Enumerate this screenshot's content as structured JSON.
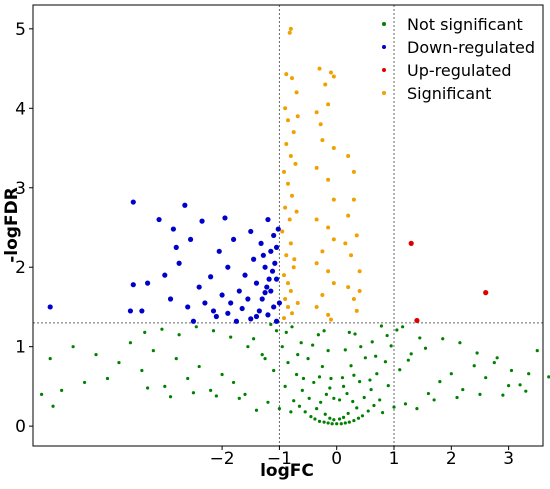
{
  "chart_data": {
    "type": "scatter",
    "title": "",
    "xlabel": "logFC",
    "ylabel": "-logFDR",
    "xlim": [
      -5.3,
      3.6
    ],
    "ylim": [
      -0.25,
      5.3
    ],
    "x_ticks": [
      -2,
      -1,
      0,
      1,
      2,
      3
    ],
    "x_tick_labels": [
      "−2",
      "−1",
      "0",
      "1",
      "2",
      "3"
    ],
    "y_ticks": [
      0,
      1,
      2,
      3,
      4,
      5
    ],
    "y_tick_labels": [
      "0",
      "1",
      "2",
      "3",
      "4",
      "5"
    ],
    "reference_lines": {
      "vertical": [
        -1,
        1
      ],
      "horizontal": [
        1.3
      ]
    },
    "grid": false,
    "legend_position": "top-right",
    "series": [
      {
        "name": "Not significant",
        "color": "#008000",
        "marker_size": 1.6,
        "points": [
          [
            -0.45,
            0.12
          ],
          [
            -0.38,
            0.09
          ],
          [
            -0.3,
            0.06
          ],
          [
            -0.22,
            0.05
          ],
          [
            -0.15,
            0.04
          ],
          [
            -0.08,
            0.03
          ],
          [
            0.0,
            0.03
          ],
          [
            0.08,
            0.03
          ],
          [
            0.15,
            0.04
          ],
          [
            0.22,
            0.05
          ],
          [
            0.3,
            0.07
          ],
          [
            0.38,
            0.1
          ],
          [
            0.45,
            0.13
          ],
          [
            -0.55,
            0.18
          ],
          [
            0.55,
            0.19
          ],
          [
            -0.65,
            0.25
          ],
          [
            0.65,
            0.26
          ],
          [
            -0.75,
            0.32
          ],
          [
            0.75,
            0.33
          ],
          [
            -0.12,
            0.1
          ],
          [
            0.12,
            0.11
          ],
          [
            -0.2,
            0.15
          ],
          [
            0.2,
            0.16
          ],
          [
            -0.05,
            0.08
          ],
          [
            0.05,
            0.09
          ],
          [
            -0.35,
            0.22
          ],
          [
            0.35,
            0.23
          ],
          [
            -0.28,
            0.3
          ],
          [
            0.28,
            0.31
          ],
          [
            -0.48,
            0.35
          ],
          [
            0.48,
            0.36
          ],
          [
            -0.18,
            0.4
          ],
          [
            0.18,
            0.41
          ],
          [
            -0.6,
            0.45
          ],
          [
            0.6,
            0.46
          ],
          [
            -0.9,
            0.5
          ],
          [
            0.9,
            0.51
          ],
          [
            -0.4,
            0.55
          ],
          [
            0.4,
            0.56
          ],
          [
            -0.1,
            0.6
          ],
          [
            0.1,
            0.61
          ],
          [
            -0.7,
            0.65
          ],
          [
            0.7,
            0.66
          ],
          [
            -1.1,
            0.7
          ],
          [
            1.1,
            0.71
          ],
          [
            -0.25,
            0.75
          ],
          [
            0.25,
            0.76
          ],
          [
            -0.85,
            0.8
          ],
          [
            0.85,
            0.81
          ],
          [
            -0.5,
            0.85
          ],
          [
            0.5,
            0.86
          ],
          [
            -1.3,
            0.9
          ],
          [
            1.3,
            0.91
          ],
          [
            -0.15,
            0.95
          ],
          [
            0.15,
            0.96
          ],
          [
            -0.95,
            1.0
          ],
          [
            0.95,
            1.01
          ],
          [
            -0.62,
            1.05
          ],
          [
            0.62,
            1.06
          ],
          [
            -1.45,
            1.1
          ],
          [
            1.45,
            1.11
          ],
          [
            -0.32,
            1.15
          ],
          [
            0.32,
            1.16
          ],
          [
            -1.05,
            1.2
          ],
          [
            1.05,
            1.21
          ],
          [
            -0.78,
            1.25
          ],
          [
            0.78,
            1.26
          ],
          [
            -1.6,
            0.4
          ],
          [
            1.6,
            0.41
          ],
          [
            -1.8,
            0.55
          ],
          [
            1.8,
            0.56
          ],
          [
            -2.0,
            0.65
          ],
          [
            2.0,
            0.66
          ],
          [
            -2.2,
            0.45
          ],
          [
            2.2,
            0.46
          ],
          [
            -2.4,
            0.75
          ],
          [
            2.4,
            0.76
          ],
          [
            -2.6,
            0.6
          ],
          [
            2.6,
            0.61
          ],
          [
            -2.8,
            0.85
          ],
          [
            2.8,
            0.86
          ],
          [
            -3.0,
            0.5
          ],
          [
            3.0,
            0.51
          ],
          [
            -3.2,
            0.95
          ],
          [
            3.2,
            0.52
          ],
          [
            -3.4,
            0.7
          ],
          [
            -3.6,
            1.05
          ],
          [
            -3.8,
            0.8
          ],
          [
            -4.0,
            0.6
          ],
          [
            -4.2,
            0.9
          ],
          [
            -4.4,
            0.55
          ],
          [
            -4.6,
            1.0
          ],
          [
            -4.8,
            0.45
          ],
          [
            -5.0,
            0.85
          ],
          [
            3.5,
            0.95
          ],
          [
            3.7,
            0.62
          ],
          [
            -5.15,
            0.4
          ],
          [
            -4.95,
            0.25
          ],
          [
            -1.2,
            0.3
          ],
          [
            1.2,
            0.28
          ],
          [
            -1.4,
            0.2
          ],
          [
            1.4,
            0.22
          ],
          [
            -1.7,
            0.35
          ],
          [
            1.7,
            0.33
          ],
          [
            -2.1,
            0.38
          ],
          [
            2.1,
            0.36
          ],
          [
            -2.5,
            0.42
          ],
          [
            2.5,
            0.4
          ],
          [
            -2.9,
            0.37
          ],
          [
            2.9,
            0.39
          ],
          [
            -3.3,
            0.48
          ],
          [
            3.3,
            0.44
          ],
          [
            -0.8,
            0.18
          ],
          [
            0.8,
            0.17
          ],
          [
            -1.0,
            0.22
          ],
          [
            1.0,
            0.24
          ],
          [
            -0.58,
            0.6
          ],
          [
            0.58,
            0.58
          ],
          [
            -1.25,
            0.85
          ],
          [
            1.25,
            0.83
          ],
          [
            -1.55,
            1.0
          ],
          [
            1.55,
            0.98
          ],
          [
            -1.85,
            1.12
          ],
          [
            1.85,
            1.1
          ],
          [
            -2.15,
            1.2
          ],
          [
            2.15,
            1.05
          ],
          [
            -2.45,
            1.25
          ],
          [
            2.45,
            0.92
          ],
          [
            -2.75,
            1.15
          ],
          [
            2.75,
            0.8
          ],
          [
            -3.05,
            1.22
          ],
          [
            3.05,
            0.7
          ],
          [
            -3.35,
            1.18
          ],
          [
            3.35,
            0.66
          ],
          [
            -0.42,
            1.02
          ],
          [
            0.42,
            1.0
          ],
          [
            -0.68,
            0.9
          ],
          [
            0.68,
            0.88
          ],
          [
            -0.22,
            1.2
          ],
          [
            0.22,
            1.18
          ],
          [
            -0.88,
            1.18
          ],
          [
            0.88,
            1.14
          ],
          [
            -1.15,
            1.28
          ],
          [
            1.15,
            1.25
          ],
          [
            -0.05,
            0.35
          ],
          [
            0.05,
            0.33
          ],
          [
            -0.12,
            0.48
          ],
          [
            0.12,
            0.5
          ],
          [
            -0.3,
            0.62
          ],
          [
            0.3,
            0.64
          ]
        ]
      },
      {
        "name": "Down-regulated",
        "color": "#0000cc",
        "marker_size": 2.6,
        "points": [
          [
            -3.55,
            2.82
          ],
          [
            -3.1,
            2.6
          ],
          [
            -2.65,
            2.78
          ],
          [
            -2.85,
            2.48
          ],
          [
            -2.35,
            2.58
          ],
          [
            -1.95,
            2.62
          ],
          [
            -2.05,
            2.2
          ],
          [
            -2.55,
            2.35
          ],
          [
            -1.8,
            2.35
          ],
          [
            -2.8,
            2.25
          ],
          [
            -1.5,
            2.45
          ],
          [
            -1.2,
            2.6
          ],
          [
            -1.1,
            2.4
          ],
          [
            -1.15,
            2.2
          ],
          [
            -1.25,
            2.0
          ],
          [
            -1.05,
            1.85
          ],
          [
            -1.15,
            1.7
          ],
          [
            -1.3,
            1.6
          ],
          [
            -1.4,
            1.8
          ],
          [
            -1.6,
            1.9
          ],
          [
            -1.7,
            1.7
          ],
          [
            -1.85,
            1.55
          ],
          [
            -2.0,
            1.65
          ],
          [
            -2.2,
            1.88
          ],
          [
            -2.4,
            1.75
          ],
          [
            -2.6,
            1.5
          ],
          [
            -2.9,
            1.6
          ],
          [
            -3.0,
            1.9
          ],
          [
            -3.3,
            1.8
          ],
          [
            -3.55,
            1.78
          ],
          [
            -3.6,
            1.45
          ],
          [
            -3.4,
            1.45
          ],
          [
            -5.0,
            1.5
          ],
          [
            -1.1,
            1.5
          ],
          [
            -1.2,
            1.4
          ],
          [
            -1.35,
            1.45
          ],
          [
            -1.5,
            1.35
          ],
          [
            -1.65,
            1.48
          ],
          [
            -1.9,
            1.42
          ],
          [
            -2.1,
            1.38
          ],
          [
            -2.3,
            1.55
          ],
          [
            -2.5,
            1.32
          ],
          [
            -1.05,
            1.32
          ],
          [
            -1.08,
            2.05
          ],
          [
            -1.12,
            1.95
          ],
          [
            -1.18,
            1.85
          ],
          [
            -1.22,
            1.75
          ],
          [
            -1.28,
            2.15
          ],
          [
            -1.32,
            2.3
          ],
          [
            -1.02,
            2.48
          ],
          [
            -1.05,
            2.25
          ],
          [
            -1.4,
            1.38
          ],
          [
            -1.75,
            1.32
          ],
          [
            -2.15,
            1.45
          ],
          [
            -1.55,
            1.6
          ],
          [
            -1.0,
            1.55
          ],
          [
            -1.25,
            1.68
          ],
          [
            -2.75,
            2.05
          ],
          [
            -1.9,
            2.0
          ],
          [
            -1.45,
            2.1
          ]
        ]
      },
      {
        "name": "Up-regulated",
        "color": "#dd0000",
        "marker_size": 2.6,
        "points": [
          [
            1.3,
            2.3
          ],
          [
            2.6,
            1.68
          ],
          [
            1.4,
            1.33
          ]
        ]
      },
      {
        "name": "Significant",
        "color": "#f0a000",
        "marker_size": 2.0,
        "points": [
          [
            -0.8,
            5.0
          ],
          [
            -0.82,
            4.95
          ],
          [
            -0.88,
            4.43
          ],
          [
            -0.78,
            4.38
          ],
          [
            -0.9,
            4.0
          ],
          [
            -0.85,
            3.85
          ],
          [
            -0.75,
            3.7
          ],
          [
            -0.88,
            3.55
          ],
          [
            -0.8,
            3.4
          ],
          [
            -0.92,
            3.2
          ],
          [
            -0.85,
            3.05
          ],
          [
            -0.78,
            2.9
          ],
          [
            -0.9,
            2.75
          ],
          [
            -0.82,
            2.6
          ],
          [
            -0.95,
            2.45
          ],
          [
            -0.8,
            2.3
          ],
          [
            -0.88,
            2.15
          ],
          [
            -0.75,
            2.0
          ],
          [
            -0.92,
            1.9
          ],
          [
            -0.85,
            1.8
          ],
          [
            -0.8,
            1.7
          ],
          [
            -0.9,
            1.6
          ],
          [
            -0.85,
            1.5
          ],
          [
            -0.78,
            1.42
          ],
          [
            -0.92,
            1.36
          ],
          [
            -0.7,
            4.2
          ],
          [
            -0.68,
            3.9
          ],
          [
            -0.72,
            3.3
          ],
          [
            -0.7,
            2.7
          ],
          [
            -0.74,
            2.1
          ],
          [
            -0.68,
            1.55
          ],
          [
            -0.3,
            4.5
          ],
          [
            -0.1,
            4.45
          ],
          [
            -0.05,
            4.4
          ],
          [
            -0.15,
            4.05
          ],
          [
            -0.35,
            3.95
          ],
          [
            -0.25,
            3.6
          ],
          [
            -0.05,
            3.5
          ],
          [
            -0.35,
            3.25
          ],
          [
            -0.15,
            3.1
          ],
          [
            -0.05,
            2.85
          ],
          [
            -0.35,
            2.6
          ],
          [
            -0.15,
            2.5
          ],
          [
            -0.05,
            2.35
          ],
          [
            -0.25,
            2.2
          ],
          [
            -0.35,
            2.05
          ],
          [
            -0.15,
            1.95
          ],
          [
            -0.05,
            1.8
          ],
          [
            -0.25,
            1.65
          ],
          [
            -0.35,
            1.5
          ],
          [
            -0.15,
            1.4
          ],
          [
            -0.1,
            1.34
          ],
          [
            0.3,
            3.2
          ],
          [
            0.3,
            2.85
          ],
          [
            0.2,
            2.65
          ],
          [
            0.35,
            2.4
          ],
          [
            0.25,
            2.15
          ],
          [
            0.4,
            1.95
          ],
          [
            0.2,
            1.75
          ],
          [
            0.3,
            1.6
          ],
          [
            0.35,
            1.45
          ],
          [
            0.4,
            1.7
          ],
          [
            0.15,
            2.3
          ],
          [
            0.2,
            3.4
          ],
          [
            -0.2,
            4.3
          ],
          [
            -0.28,
            3.8
          ]
        ]
      }
    ]
  }
}
